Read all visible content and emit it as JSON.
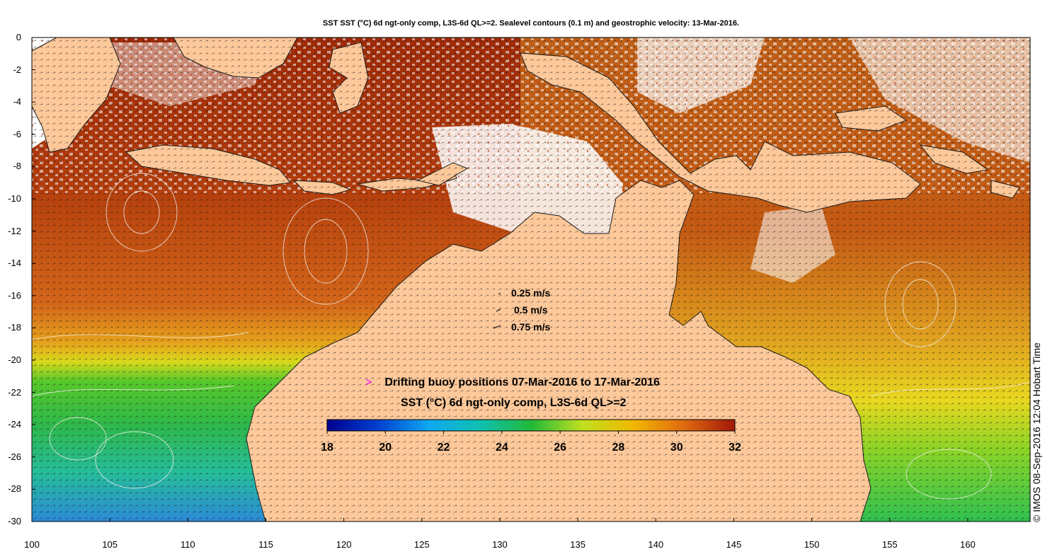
{
  "title": "SST SST (°C) 6d ngt-only comp, L3S-6d QL>=2. Sealevel contours (0.1 m) and geostrophic velocity: 13-Mar-2016.",
  "colors": {
    "land": "#fdc89a",
    "nodata": "#ffffff",
    "buoy_marker": "#ff00ff"
  },
  "map": {
    "lon_range": [
      100,
      164
    ],
    "lat_range": [
      -30,
      0
    ],
    "x_ticks": [
      "100",
      "105",
      "110",
      "115",
      "120",
      "125",
      "130",
      "135",
      "140",
      "145",
      "150",
      "155",
      "160"
    ],
    "y_ticks": [
      "0",
      "-2",
      "-4",
      "-6",
      "-8",
      "-10",
      "-12",
      "-14",
      "-16",
      "-18",
      "-20",
      "-22",
      "-24",
      "-26",
      "-28",
      "-30"
    ]
  },
  "velocity_legend": [
    "0.25 m/s",
    "0.5 m/s",
    "0.75 m/s"
  ],
  "buoy_legend": {
    "symbol": ">",
    "label": "Drifting buoy positions 07-Mar-2016 to 17-Mar-2016"
  },
  "colorbar": {
    "title": "SST (°C) 6d ngt-only comp, L3S-6d QL>=2",
    "range": [
      18,
      32
    ],
    "ticks": [
      "18",
      "20",
      "22",
      "24",
      "26",
      "28",
      "30",
      "32"
    ]
  },
  "credit": "© IMOS 08-Sep-2016 12:04 Hobart Time"
}
